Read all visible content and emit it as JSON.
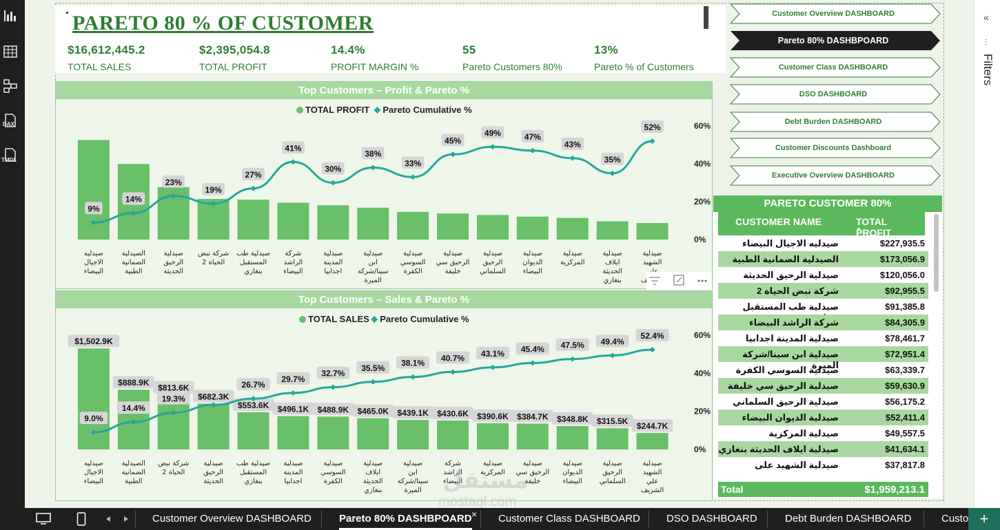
{
  "page": {
    "title": "PARETO 80 % OF CUSTOMER"
  },
  "kpis": [
    {
      "value": "$16,612,445.2",
      "label": "TOTAL SALES"
    },
    {
      "value": "$2,395,054.8",
      "label": "TOTAL PROFIT"
    },
    {
      "value": "14.4%",
      "label": "PROFIT MARGIN %"
    },
    {
      "value": "55",
      "label": "Pareto Customers 80%"
    },
    {
      "value": "13%",
      "label": "Pareto % of Customers"
    }
  ],
  "nav_buttons": [
    {
      "label": "Customer Overview DASHBOARD",
      "active": false
    },
    {
      "label": "Pareto 80% DASHBPOARD",
      "active": true
    },
    {
      "label": "Customer Class DASHBOARD",
      "active": false
    },
    {
      "label": "DSO DASHBOARD",
      "active": false
    },
    {
      "label": "Debt Burden DASHBOARD",
      "active": false
    },
    {
      "label": "Customer Discounts Dashboard",
      "active": false
    },
    {
      "label": "Executive Overview DASHBOARD",
      "active": false
    }
  ],
  "colors": {
    "bar": "#6abf69",
    "line": "#26a69a",
    "header": "#a8d8a0",
    "accent": "#2e7d32",
    "active_nav": "#1f1f1f"
  },
  "chart_data": [
    {
      "type": "bar",
      "title": "Top Customers – Profit & Pareto %",
      "legend_position": "top-center",
      "categories": [
        "صيدليه الاجيال البيضاء",
        "الصيدلية الضمانية الطبية",
        "صيدلية الرحيق الحديثة",
        "شركة نبض الحياة 2",
        "صيدلية طب المستقبل بنغازي",
        "شركة الراشد البيضاء",
        "صيدلية المدينة اجدابيا",
        "صيدلية ابن سينا/شركة الميرة",
        "صيدلية السوسي الكفرة",
        "صيدلية الرحيق سي خليفة",
        "صيدلية الرحيق السلماني",
        "صيدلية الديوان البيضاء",
        "صيدلية المركزية",
        "صيدلية ايلاف الحديثة بنغازي",
        "صيدلية الشهيد علي الشريف"
      ],
      "series": [
        {
          "name": "TOTAL PROFIT",
          "kind": "bar",
          "values": [
            227935.5,
            173056.9,
            120056.0,
            92955.5,
            91385.8,
            84305.9,
            78461.7,
            72951.4,
            63339.7,
            59630.9,
            56175.2,
            52411.4,
            49557.5,
            41634.1,
            37817.8
          ]
        },
        {
          "name": "Pareto Cumulative %",
          "kind": "line",
          "values": [
            9,
            14,
            23,
            19,
            27,
            41,
            30,
            38,
            33,
            45,
            49,
            47,
            43,
            35,
            52
          ],
          "labels": [
            "9%",
            "14%",
            "23%",
            "19%",
            "27%",
            "41%",
            "30%",
            "38%",
            "33%",
            "45%",
            "49%",
            "47%",
            "43%",
            "35%",
            "52%"
          ]
        }
      ],
      "y2_ticks": [
        "60%",
        "40%",
        "20%",
        "0%"
      ],
      "y2lim": [
        0,
        60
      ],
      "ylim": [
        0,
        260000
      ]
    },
    {
      "type": "bar",
      "title": "Top Customers – Sales & Pareto %",
      "legend_position": "top-center",
      "categories": [
        "صيدليه الاجيال البيضاء",
        "الصيدلية الضمانية الطبية",
        "شركة نبض الحياة 2",
        "صيدلية الرحيق الحديثة",
        "صيدلية طب المستقبل بنغازي",
        "صيدلية المدينة اجدابيا",
        "صيدلية السوسي الكفرة",
        "صيدلية ايلاف الحديثة بنغازي",
        "صيدلية ابن سينا/شركة الميرة",
        "شركة الراشد البيضاء",
        "صيدلية المركزية",
        "صيدلية الرحيق سي خليفة",
        "صيدلية الديوان البيضاء",
        "صيدلية الرحيق السلماني",
        "صيدلية الشهيد علي الشريف"
      ],
      "series": [
        {
          "name": "TOTAL SALES",
          "kind": "bar",
          "values": [
            1502.9,
            888.9,
            813.6,
            682.3,
            553.6,
            496.1,
            488.9,
            465.0,
            439.1,
            430.6,
            390.6,
            384.7,
            348.8,
            315.5,
            244.7
          ],
          "labels": [
            "$1,502.9K",
            "$888.9K",
            "$813.6K",
            "$682.3K",
            "$553.6K",
            "$496.1K",
            "$488.9K",
            "$465.0K",
            "$439.1K",
            "$430.6K",
            "$390.6K",
            "$384.7K",
            "$348.8K",
            "$315.5K",
            "$244.7K"
          ]
        },
        {
          "name": "Pareto Cumulative %",
          "kind": "line",
          "values": [
            9.0,
            14.4,
            19.3,
            23.4,
            26.7,
            29.7,
            32.7,
            35.5,
            38.1,
            40.7,
            43.1,
            45.4,
            47.5,
            49.4,
            52.4
          ],
          "labels": [
            "9.0%",
            "14.4%",
            "19.3%",
            "",
            "26.7%",
            "29.7%",
            "32.7%",
            "35.5%",
            "38.1%",
            "40.7%",
            "43.1%",
            "45.4%",
            "47.5%",
            "49.4%",
            "52.4%"
          ]
        }
      ],
      "y2_ticks": [
        "60%",
        "40%",
        "20%",
        "0%"
      ],
      "y2lim": [
        0,
        60
      ],
      "ylim": [
        0,
        1700
      ]
    }
  ],
  "table": {
    "title": "PARETO CUSTOMER 80%",
    "columns": [
      "CUSTOMER NAME",
      "TOTAL PROFIT"
    ],
    "sort_indicator": "▼",
    "rows": [
      {
        "name": "صيدليه الاجيال البيضاء",
        "profit": "$227,935.5"
      },
      {
        "name": "الصيدلية الضمانية الطبية",
        "profit": "$173,056.9"
      },
      {
        "name": "صيدلية الرحيق الحديثة",
        "profit": "$120,056.0"
      },
      {
        "name": "شركة نبض الحياة 2",
        "profit": "$92,955.5"
      },
      {
        "name": "صيدلية طب المستقبل بنغازي",
        "profit": "$91,385.8"
      },
      {
        "name": "شركة الراشد البيضاء",
        "profit": "$84,305.9"
      },
      {
        "name": "صيدلية المدينة اجدابيا",
        "profit": "$78,461.7"
      },
      {
        "name": "صيدلية ابن سينا/شركة الميرة",
        "profit": "$72,951.4"
      },
      {
        "name": "صيدلية السوسي الكفرة",
        "profit": "$63,339.7"
      },
      {
        "name": "صيدلية الرحيق سي خليفة",
        "profit": "$59,630.9"
      },
      {
        "name": "صيدلية الرحيق السلماني",
        "profit": "$56,175.2"
      },
      {
        "name": "صيدلية الديوان البيضاء",
        "profit": "$52,411.4"
      },
      {
        "name": "صيدلية المركزية",
        "profit": "$49,557.5"
      },
      {
        "name": "صيدلية ايلاف الحديثة بنغازي",
        "profit": "$41,634.1"
      },
      {
        "name": "صيدلية الشهيد علي الشريف",
        "profit": "$37,817.8"
      }
    ],
    "total_label": "Total",
    "total_value": "$1,959,213.1"
  },
  "filters": {
    "label": "Filters",
    "collapse_glyph": "«",
    "filter_glyph": "⫶"
  },
  "rail_labels": {
    "dax": "DAX",
    "tmdl": "TMDL"
  },
  "bottom_tabs": [
    {
      "label": "Customer Overview DASHBOARD",
      "active": false
    },
    {
      "label": "Pareto 80% DASHBPOARD",
      "active": true
    },
    {
      "label": "Customer Class DASHBOARD",
      "active": false
    },
    {
      "label": "DSO DASHBOARD",
      "active": false
    },
    {
      "label": "Debt Burden DASHBOARD",
      "active": false
    },
    {
      "label": "Custo",
      "active": false
    }
  ],
  "tab_close_glyph": "×",
  "add_tab_glyph": "+",
  "watermark": {
    "arabic": "مستقل",
    "latin": "mostaql.com"
  }
}
